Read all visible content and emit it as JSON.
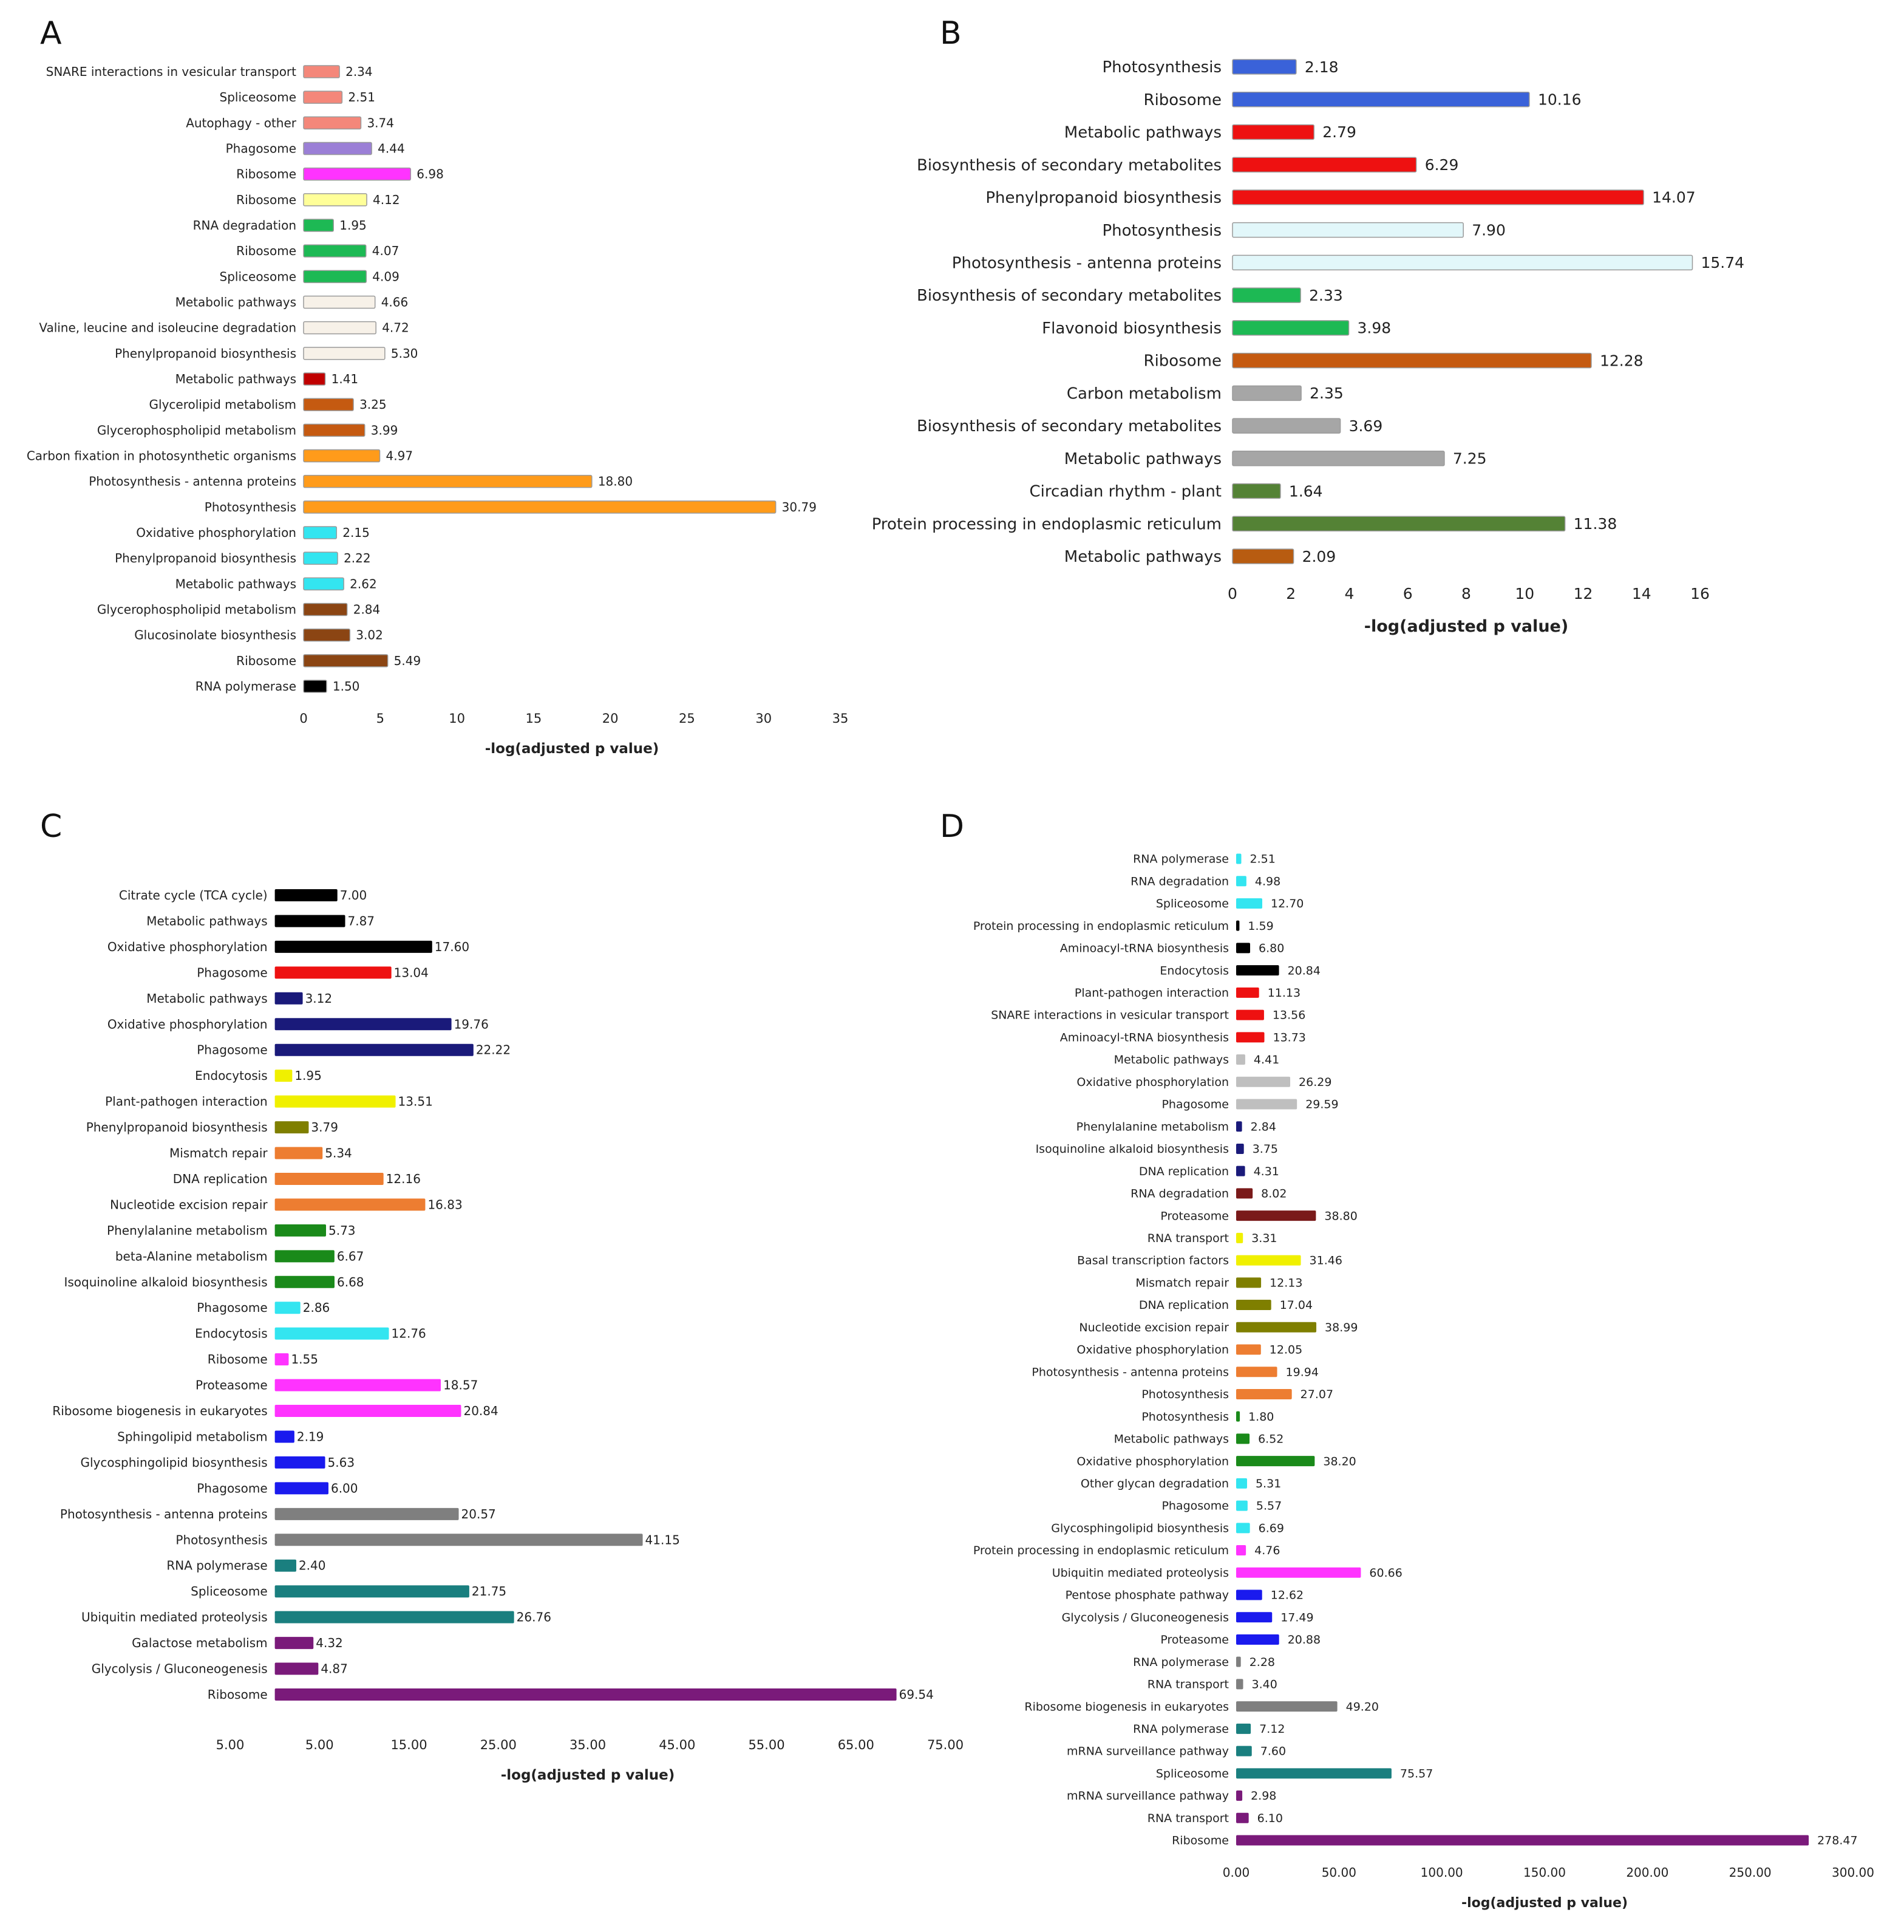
{
  "chart_data": [
    {
      "panel": "A",
      "type": "bar",
      "orientation": "horizontal",
      "xlabel": "-log(adjusted p value)",
      "xlim": [
        0,
        35
      ],
      "ticks": [
        "0",
        "5",
        "10",
        "15",
        "20",
        "25",
        "30",
        "35"
      ],
      "categories": [
        "SNARE interactions in vesicular transport",
        "Spliceosome",
        "Autophagy - other",
        "Phagosome",
        "Ribosome",
        "Ribosome",
        "RNA degradation",
        "Ribosome",
        "Spliceosome",
        "Metabolic pathways",
        "Valine, leucine and isoleucine degradation",
        "Phenylpropanoid biosynthesis",
        "Metabolic pathways",
        "Glycerolipid metabolism",
        "Glycerophospholipid metabolism",
        "Carbon fixation in photosynthetic organisms",
        "Photosynthesis - antenna proteins",
        "Photosynthesis",
        "Oxidative phosphorylation",
        "Phenylpropanoid biosynthesis",
        "Metabolic pathways",
        "Glycerophospholipid metabolism",
        "Glucosinolate biosynthesis",
        "Ribosome",
        "RNA polymerase"
      ],
      "values": [
        2.34,
        2.51,
        3.74,
        4.44,
        6.98,
        4.12,
        1.95,
        4.07,
        4.09,
        4.66,
        4.72,
        5.3,
        1.41,
        3.25,
        3.99,
        4.97,
        18.8,
        30.79,
        2.15,
        2.22,
        2.62,
        2.84,
        3.02,
        5.49,
        1.5
      ],
      "labels": [
        "2.34",
        "2.51",
        "3.74",
        "4.44",
        "6.98",
        "4.12",
        "1.95",
        "4.07",
        "4.09",
        "4.66",
        "4.72",
        "5.30",
        "1.41",
        "3.25",
        "3.99",
        "4.97",
        "18.80",
        "30.79",
        "2.15",
        "2.22",
        "2.62",
        "2.84",
        "3.02",
        "5.49",
        "1.50"
      ],
      "colors": [
        "#f4877a",
        "#f4877a",
        "#f4877a",
        "#9b7fd6",
        "#ff33ff",
        "#ffff99",
        "#1db954",
        "#1db954",
        "#1db954",
        "#f7f1e8",
        "#f7f1e8",
        "#f7f1e8",
        "#c00000",
        "#c55a11",
        "#c55a11",
        "#ff9b1a",
        "#ff9b1a",
        "#ff9b1a",
        "#33e5f0",
        "#33e5f0",
        "#33e5f0",
        "#8b4513",
        "#8b4513",
        "#8b4513",
        "#000000"
      ]
    },
    {
      "panel": "B",
      "type": "bar",
      "orientation": "horizontal",
      "xlabel": "-log(adjusted p value)",
      "xlim": [
        0,
        16
      ],
      "ticks": [
        "0",
        "2",
        "4",
        "6",
        "8",
        "10",
        "12",
        "14",
        "16"
      ],
      "categories": [
        "Photosynthesis",
        "Ribosome",
        "Metabolic pathways",
        "Biosynthesis of secondary metabolites",
        "Phenylpropanoid biosynthesis",
        "Photosynthesis",
        "Photosynthesis - antenna proteins",
        "Biosynthesis of secondary metabolites",
        "Flavonoid biosynthesis",
        "Ribosome",
        "Carbon metabolism",
        "Biosynthesis of secondary metabolites",
        "Metabolic pathways",
        "Circadian rhythm - plant",
        "Protein processing in endoplasmic reticulum",
        "Metabolic pathways"
      ],
      "values": [
        2.18,
        10.16,
        2.79,
        6.29,
        14.07,
        7.9,
        15.74,
        2.33,
        3.98,
        12.28,
        2.35,
        3.69,
        7.25,
        1.64,
        11.38,
        2.09
      ],
      "labels": [
        "2.18",
        "10.16",
        "2.79",
        "6.29",
        "14.07",
        "7.90",
        "15.74",
        "2.33",
        "3.98",
        "12.28",
        "2.35",
        "3.69",
        "7.25",
        "1.64",
        "11.38",
        "2.09"
      ],
      "colors": [
        "#3a62d9",
        "#3a62d9",
        "#ee1111",
        "#ee1111",
        "#ee1111",
        "#e2f7fa",
        "#e2f7fa",
        "#1db954",
        "#1db954",
        "#c55a11",
        "#a6a6a6",
        "#a6a6a6",
        "#a6a6a6",
        "#548235",
        "#548235",
        "#b85c11"
      ]
    },
    {
      "panel": "C",
      "type": "bar",
      "orientation": "horizontal",
      "xlabel": "-log(adjusted p value)",
      "xlim": [
        -5,
        75
      ],
      "ticks": [
        "5.00",
        "5.00",
        "15.00",
        "25.00",
        "35.00",
        "45.00",
        "55.00",
        "65.00",
        "75.00"
      ],
      "categories": [
        "Citrate cycle (TCA cycle)",
        "Metabolic pathways",
        "Oxidative phosphorylation",
        "Phagosome",
        "Metabolic pathways",
        "Oxidative phosphorylation",
        "Phagosome",
        "Endocytosis",
        "Plant-pathogen interaction",
        "Phenylpropanoid biosynthesis",
        "Mismatch repair",
        "DNA replication",
        "Nucleotide excision repair",
        "Phenylalanine metabolism",
        "beta-Alanine metabolism",
        "Isoquinoline alkaloid biosynthesis",
        "Phagosome",
        "Endocytosis",
        "Ribosome",
        "Proteasome",
        "Ribosome biogenesis in eukaryotes",
        "Sphingolipid metabolism",
        "Glycosphingolipid biosynthesis",
        "Phagosome",
        "Photosynthesis - antenna proteins",
        "Photosynthesis",
        "RNA polymerase",
        "Spliceosome",
        "Ubiquitin mediated proteolysis",
        "Galactose metabolism",
        "Glycolysis / Gluconeogenesis",
        "Ribosome"
      ],
      "values": [
        7.0,
        7.87,
        17.6,
        13.04,
        3.12,
        19.76,
        22.22,
        1.95,
        13.51,
        3.79,
        5.34,
        12.16,
        16.83,
        5.73,
        6.67,
        6.68,
        2.86,
        12.76,
        1.55,
        18.57,
        20.84,
        2.19,
        5.63,
        6.0,
        20.57,
        41.15,
        2.4,
        21.75,
        26.76,
        4.32,
        4.87,
        69.54
      ],
      "labels": [
        "7.00",
        "7.87",
        "17.60",
        "13.04",
        "3.12",
        "19.76",
        "22.22",
        "1.95",
        "13.51",
        "3.79",
        "5.34",
        "12.16",
        "16.83",
        "5.73",
        "6.67",
        "6.68",
        "2.86",
        "12.76",
        "1.55",
        "18.57",
        "20.84",
        "2.19",
        "5.63",
        "6.00",
        "20.57",
        "41.15",
        "2.40",
        "21.75",
        "26.76",
        "4.32",
        "4.87",
        "69.54"
      ],
      "colors": [
        "#000000",
        "#000000",
        "#000000",
        "#ee1111",
        "#1a1a7a",
        "#1a1a7a",
        "#1a1a7a",
        "#f0f000",
        "#f0f000",
        "#7f7f00",
        "#ed7d31",
        "#ed7d31",
        "#ed7d31",
        "#1a8a1a",
        "#1a8a1a",
        "#1a8a1a",
        "#33e5f0",
        "#33e5f0",
        "#ff33ff",
        "#ff33ff",
        "#ff33ff",
        "#1a1aee",
        "#1a1aee",
        "#1a1aee",
        "#7f7f7f",
        "#7f7f7f",
        "#1a7f7f",
        "#1a7f7f",
        "#1a7f7f",
        "#7a1a7a",
        "#7a1a7a",
        "#7a1a7a"
      ]
    },
    {
      "panel": "D",
      "type": "bar",
      "orientation": "horizontal",
      "xlabel": "-log(adjusted p value)",
      "xlim": [
        0,
        300
      ],
      "ticks": [
        "0.00",
        "50.00",
        "100.00",
        "150.00",
        "200.00",
        "250.00",
        "300.00"
      ],
      "categories": [
        "RNA polymerase",
        "RNA degradation",
        "Spliceosome",
        "Protein processing in endoplasmic reticulum",
        "Aminoacyl-tRNA biosynthesis",
        "Endocytosis",
        "Plant-pathogen interaction",
        "SNARE interactions in vesicular transport",
        "Aminoacyl-tRNA biosynthesis",
        "Metabolic pathways",
        "Oxidative phosphorylation",
        "Phagosome",
        "Phenylalanine metabolism",
        "Isoquinoline alkaloid biosynthesis",
        "DNA replication",
        "RNA degradation",
        "Proteasome",
        "RNA transport",
        "Basal transcription factors",
        "Mismatch repair",
        "DNA replication",
        "Nucleotide excision repair",
        "Oxidative phosphorylation",
        "Photosynthesis - antenna proteins",
        "Photosynthesis",
        "Photosynthesis",
        "Metabolic pathways",
        "Oxidative phosphorylation",
        "Other glycan degradation",
        "Phagosome",
        "Glycosphingolipid biosynthesis",
        "Protein processing in endoplasmic reticulum",
        "Ubiquitin mediated proteolysis",
        "Pentose phosphate pathway",
        "Glycolysis / Gluconeogenesis",
        "Proteasome",
        "RNA polymerase",
        "RNA transport",
        "Ribosome biogenesis in eukaryotes",
        "RNA polymerase",
        "mRNA surveillance pathway",
        "Spliceosome",
        "mRNA surveillance pathway",
        "RNA transport",
        "Ribosome"
      ],
      "values": [
        2.51,
        4.98,
        12.7,
        1.59,
        6.8,
        20.84,
        11.13,
        13.56,
        13.73,
        4.41,
        26.29,
        29.59,
        2.84,
        3.75,
        4.31,
        8.02,
        38.8,
        3.31,
        31.46,
        12.13,
        17.04,
        38.99,
        12.05,
        19.94,
        27.07,
        1.8,
        6.52,
        38.2,
        5.31,
        5.57,
        6.69,
        4.76,
        60.66,
        12.62,
        17.49,
        20.88,
        2.28,
        3.4,
        49.2,
        7.12,
        7.6,
        75.57,
        2.98,
        6.1,
        278.47
      ],
      "labels": [
        "2.51",
        "4.98",
        "12.70",
        "1.59",
        "6.80",
        "20.84",
        "11.13",
        "13.56",
        "13.73",
        "4.41",
        "26.29",
        "29.59",
        "2.84",
        "3.75",
        "4.31",
        "8.02",
        "38.80",
        "3.31",
        "31.46",
        "12.13",
        "17.04",
        "38.99",
        "12.05",
        "19.94",
        "27.07",
        "1.80",
        "6.52",
        "38.20",
        "5.31",
        "5.57",
        "6.69",
        "4.76",
        "60.66",
        "12.62",
        "17.49",
        "20.88",
        "2.28",
        "3.40",
        "49.20",
        "7.12",
        "7.60",
        "75.57",
        "2.98",
        "6.10",
        "278.47"
      ],
      "colors": [
        "#33e5f0",
        "#33e5f0",
        "#33e5f0",
        "#000000",
        "#000000",
        "#000000",
        "#ee1111",
        "#ee1111",
        "#ee1111",
        "#bfbfbf",
        "#bfbfbf",
        "#bfbfbf",
        "#1a1a7a",
        "#1a1a7a",
        "#1a1a7a",
        "#7a1a1a",
        "#7a1a1a",
        "#f0f000",
        "#f0f000",
        "#7f7f00",
        "#7f7f00",
        "#7f7f00",
        "#ed7d31",
        "#ed7d31",
        "#ed7d31",
        "#1a8a1a",
        "#1a8a1a",
        "#1a8a1a",
        "#33e5f0",
        "#33e5f0",
        "#33e5f0",
        "#ff33ff",
        "#ff33ff",
        "#1a1aee",
        "#1a1aee",
        "#1a1aee",
        "#7f7f7f",
        "#7f7f7f",
        "#7f7f7f",
        "#1a7f7f",
        "#1a7f7f",
        "#1a7f7f",
        "#7a1a7a",
        "#7a1a7a",
        "#7a1a7a"
      ]
    }
  ]
}
